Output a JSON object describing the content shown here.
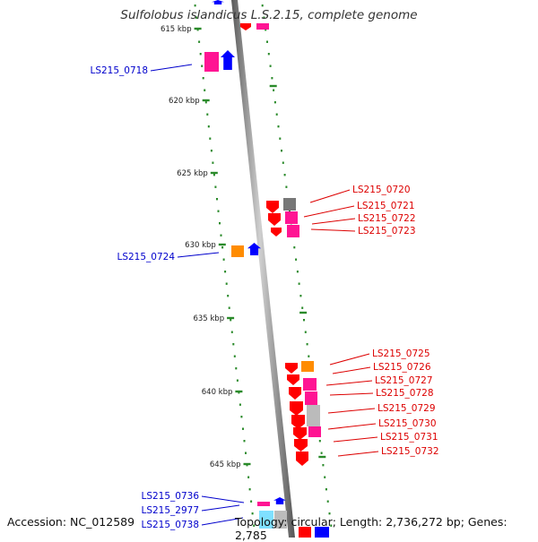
{
  "title": "Sulfolobus islandicus L.S.2.15, complete genome",
  "footer": {
    "accession": "Accession: NC_012589",
    "stats": "Topology: circular; Length: 2,736,272 bp; Genes: 2,785"
  },
  "scale_labels": [
    "615 kbp",
    "620 kbp",
    "625 kbp",
    "630 kbp",
    "635 kbp",
    "640 kbp",
    "645 kbp"
  ],
  "left_gene_labels": [
    "LS215_0718",
    "LS215_0724",
    "LS215_0736",
    "LS215_2977",
    "LS215_0738"
  ],
  "right_gene_labels": [
    "LS215_0720",
    "LS215_0721",
    "LS215_0722",
    "LS215_0723",
    "LS215_0725",
    "LS215_0726",
    "LS215_0727",
    "LS215_0728",
    "LS215_0729",
    "LS215_0730",
    "LS215_0731",
    "LS215_0732"
  ],
  "colors": {
    "backbone": "#8c8c8c",
    "tick": "#2a8a2a",
    "left_label": "#0000cc",
    "right_label": "#dd0000",
    "red": "#ff0000",
    "pink": "#ff1493",
    "blue": "#0000ff",
    "orange": "#ff8c00",
    "gray": "#777777",
    "light_gray": "#bbbbbb",
    "cyan": "#7fe0ff"
  }
}
